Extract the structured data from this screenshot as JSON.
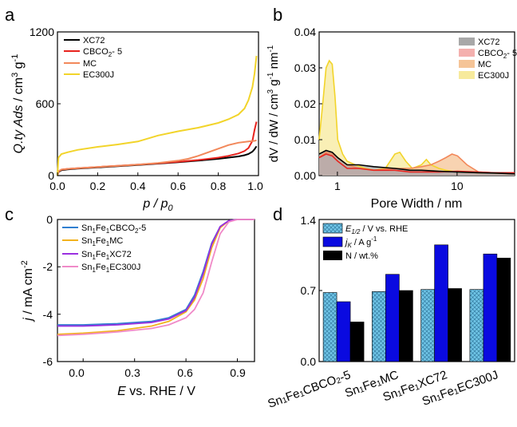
{
  "figure": {
    "panels": {
      "a": {
        "letter": "a",
        "chart_data": {
          "type": "line",
          "xlabel": "p / p0",
          "ylabel": "Q.ty Ads / cm3 g-1",
          "xlim": [
            0,
            1
          ],
          "ylim": [
            0,
            1200
          ],
          "xticks": [
            0.0,
            0.2,
            0.4,
            0.6,
            0.8,
            1.0
          ],
          "yticks": [
            0,
            600,
            1200
          ],
          "legend_position": "top-left",
          "series": [
            {
              "name": "XC72",
              "color": "#000000",
              "x": [
                0,
                0.005,
                0.02,
                0.05,
                0.1,
                0.2,
                0.3,
                0.4,
                0.5,
                0.6,
                0.7,
                0.8,
                0.85,
                0.9,
                0.93,
                0.95,
                0.97,
                0.98,
                0.99
              ],
              "y": [
                0,
                30,
                45,
                52,
                58,
                68,
                78,
                88,
                100,
                112,
                125,
                140,
                150,
                160,
                170,
                180,
                200,
                220,
                245
              ]
            },
            {
              "name": "CBCO2- 5",
              "color": "#e8231e",
              "x": [
                0,
                0.005,
                0.02,
                0.05,
                0.1,
                0.2,
                0.3,
                0.4,
                0.5,
                0.6,
                0.7,
                0.8,
                0.85,
                0.9,
                0.93,
                0.95,
                0.97,
                0.98,
                0.99
              ],
              "y": [
                0,
                35,
                50,
                56,
                62,
                72,
                82,
                92,
                103,
                115,
                130,
                150,
                165,
                185,
                205,
                230,
                290,
                380,
                450
              ]
            },
            {
              "name": "MC",
              "color": "#f2885a",
              "x": [
                0,
                0.005,
                0.02,
                0.05,
                0.1,
                0.2,
                0.3,
                0.4,
                0.5,
                0.6,
                0.65,
                0.7,
                0.75,
                0.8,
                0.85,
                0.9,
                0.95,
                0.98,
                0.99
              ],
              "y": [
                0,
                35,
                50,
                56,
                62,
                72,
                82,
                92,
                105,
                125,
                140,
                165,
                195,
                225,
                255,
                275,
                285,
                290,
                295
              ]
            },
            {
              "name": "EC300J",
              "color": "#f2d42a",
              "x": [
                0,
                0.005,
                0.02,
                0.05,
                0.1,
                0.2,
                0.3,
                0.4,
                0.5,
                0.6,
                0.7,
                0.8,
                0.85,
                0.9,
                0.93,
                0.95,
                0.97,
                0.98,
                0.99
              ],
              "y": [
                0,
                150,
                180,
                195,
                215,
                240,
                260,
                285,
                335,
                370,
                400,
                440,
                470,
                510,
                560,
                630,
                740,
                850,
                1000
              ]
            }
          ]
        }
      },
      "b": {
        "letter": "b",
        "chart_data": {
          "type": "area",
          "xlabel": "Pore Width / nm",
          "ylabel": "dV / dW / cm3 g-1 nm-1",
          "xscale": "log",
          "xlim": [
            0.7,
            30
          ],
          "ylim": [
            0,
            0.04
          ],
          "xticks": [
            1,
            10
          ],
          "yticks": [
            0.0,
            0.01,
            0.02,
            0.03,
            0.04
          ],
          "legend_position": "top-right",
          "series": [
            {
              "name": "XC72",
              "color": "#000000",
              "fill": "#a8a8a8",
              "x": [
                0.7,
                0.8,
                0.9,
                1.0,
                1.2,
                1.5,
                2,
                3,
                4,
                5,
                7,
                10,
                15,
                20,
                30
              ],
              "y": [
                0.006,
                0.007,
                0.0065,
                0.005,
                0.003,
                0.003,
                0.0025,
                0.002,
                0.0015,
                0.0015,
                0.0012,
                0.001,
                0.0008,
                0.0007,
                0.0005
              ]
            },
            {
              "name": "CBCO2- 5",
              "color": "#e8231e",
              "fill": "#f4b0ae",
              "x": [
                0.7,
                0.8,
                0.9,
                1.0,
                1.2,
                1.5,
                2,
                3,
                4,
                5,
                7,
                10,
                15,
                20,
                30
              ],
              "y": [
                0.005,
                0.006,
                0.0055,
                0.004,
                0.002,
                0.002,
                0.0015,
                0.0015,
                0.001,
                0.001,
                0.001,
                0.0012,
                0.001,
                0.0008,
                0.0008
              ]
            },
            {
              "name": "MC",
              "color": "#f2885a",
              "fill": "#f5c497",
              "x": [
                0.7,
                0.8,
                0.9,
                1.0,
                1.2,
                1.5,
                2,
                3,
                4,
                5,
                6,
                7,
                8,
                9,
                10,
                12,
                15,
                20,
                30
              ],
              "y": [
                0.005,
                0.0065,
                0.006,
                0.005,
                0.003,
                0.002,
                0.0015,
                0.002,
                0.002,
                0.0025,
                0.003,
                0.004,
                0.005,
                0.006,
                0.0055,
                0.003,
                0.001,
                0.0008,
                0.0005
              ]
            },
            {
              "name": "EC300J",
              "color": "#f2d42a",
              "fill": "#f7ea9c",
              "x": [
                0.7,
                0.75,
                0.8,
                0.85,
                0.9,
                0.95,
                1.0,
                1.1,
                1.2,
                1.4,
                1.7,
                2,
                2.5,
                3,
                3.3,
                3.7,
                4.2,
                5,
                5.5,
                6,
                7,
                8,
                10,
                15,
                20,
                30
              ],
              "y": [
                0.01,
                0.02,
                0.03,
                0.032,
                0.031,
                0.022,
                0.01,
                0.006,
                0.004,
                0.003,
                0.002,
                0.0015,
                0.002,
                0.006,
                0.0065,
                0.004,
                0.002,
                0.003,
                0.0045,
                0.003,
                0.002,
                0.0015,
                0.001,
                0.0008,
                0.0007,
                0.0005
              ]
            }
          ]
        }
      },
      "c": {
        "letter": "c",
        "chart_data": {
          "type": "line",
          "xlabel": "E vs. RHE / V",
          "ylabel": "j / mA cm-2",
          "xlim": [
            -0.15,
            1.0
          ],
          "ylim": [
            -6,
            0
          ],
          "xticks": [
            0.0,
            0.3,
            0.6,
            0.9
          ],
          "yticks": [
            0,
            -2,
            -4,
            -6
          ],
          "legend_position": "top-left",
          "series": [
            {
              "name": "Sn1Fe1CBCO2-5",
              "color": "#2f7fd0",
              "x": [
                -0.15,
                0.0,
                0.2,
                0.4,
                0.5,
                0.6,
                0.65,
                0.7,
                0.75,
                0.8,
                0.85,
                0.9,
                1.0
              ],
              "y": [
                -4.45,
                -4.45,
                -4.4,
                -4.3,
                -4.15,
                -3.8,
                -3.2,
                -2.2,
                -1.0,
                -0.3,
                -0.05,
                0,
                0
              ]
            },
            {
              "name": "Sn1Fe1MC",
              "color": "#f2b21e",
              "x": [
                -0.15,
                0.0,
                0.2,
                0.4,
                0.5,
                0.6,
                0.65,
                0.7,
                0.75,
                0.8,
                0.85,
                0.9,
                1.0
              ],
              "y": [
                -4.85,
                -4.8,
                -4.7,
                -4.5,
                -4.3,
                -3.9,
                -3.4,
                -2.5,
                -1.2,
                -0.35,
                -0.05,
                0,
                0
              ]
            },
            {
              "name": "Sn1Fe1XC72",
              "color": "#9a2fe0",
              "x": [
                -0.15,
                0.0,
                0.2,
                0.4,
                0.5,
                0.6,
                0.65,
                0.7,
                0.75,
                0.8,
                0.85,
                0.9,
                1.0
              ],
              "y": [
                -4.5,
                -4.5,
                -4.45,
                -4.35,
                -4.2,
                -3.85,
                -3.3,
                -2.3,
                -1.05,
                -0.3,
                -0.05,
                0,
                0
              ]
            },
            {
              "name": "Sn1Fe1EC300J",
              "color": "#f08ac8",
              "x": [
                -0.15,
                0.0,
                0.2,
                0.4,
                0.5,
                0.6,
                0.65,
                0.7,
                0.75,
                0.8,
                0.85,
                0.9,
                1.0
              ],
              "y": [
                -4.9,
                -4.85,
                -4.75,
                -4.6,
                -4.45,
                -4.15,
                -3.8,
                -3.1,
                -1.8,
                -0.6,
                -0.1,
                0,
                0
              ]
            }
          ]
        }
      },
      "d": {
        "letter": "d",
        "chart_data": {
          "type": "bar",
          "categories": [
            "Sn1Fe1CBCO2-5",
            "Sn1Fe1MC",
            "Sn1Fe1XC72",
            "Sn1Fe1EC300J"
          ],
          "ylim": [
            0,
            1.4
          ],
          "yticks": [
            0.0,
            0.7,
            1.4
          ],
          "legend_position": "top-left",
          "series": [
            {
              "name": "E1/2 / V vs. RHE",
              "color": "#6fc4e6",
              "pattern": "crosshatch",
              "values": [
                0.68,
                0.69,
                0.71,
                0.71
              ]
            },
            {
              "name": "jK / A g-1",
              "color": "#0a0ae0",
              "values": [
                0.59,
                0.86,
                1.15,
                1.06
              ]
            },
            {
              "name": "N / wt.%",
              "color": "#000000",
              "values": [
                0.39,
                0.7,
                0.72,
                1.02
              ]
            }
          ]
        }
      }
    }
  }
}
